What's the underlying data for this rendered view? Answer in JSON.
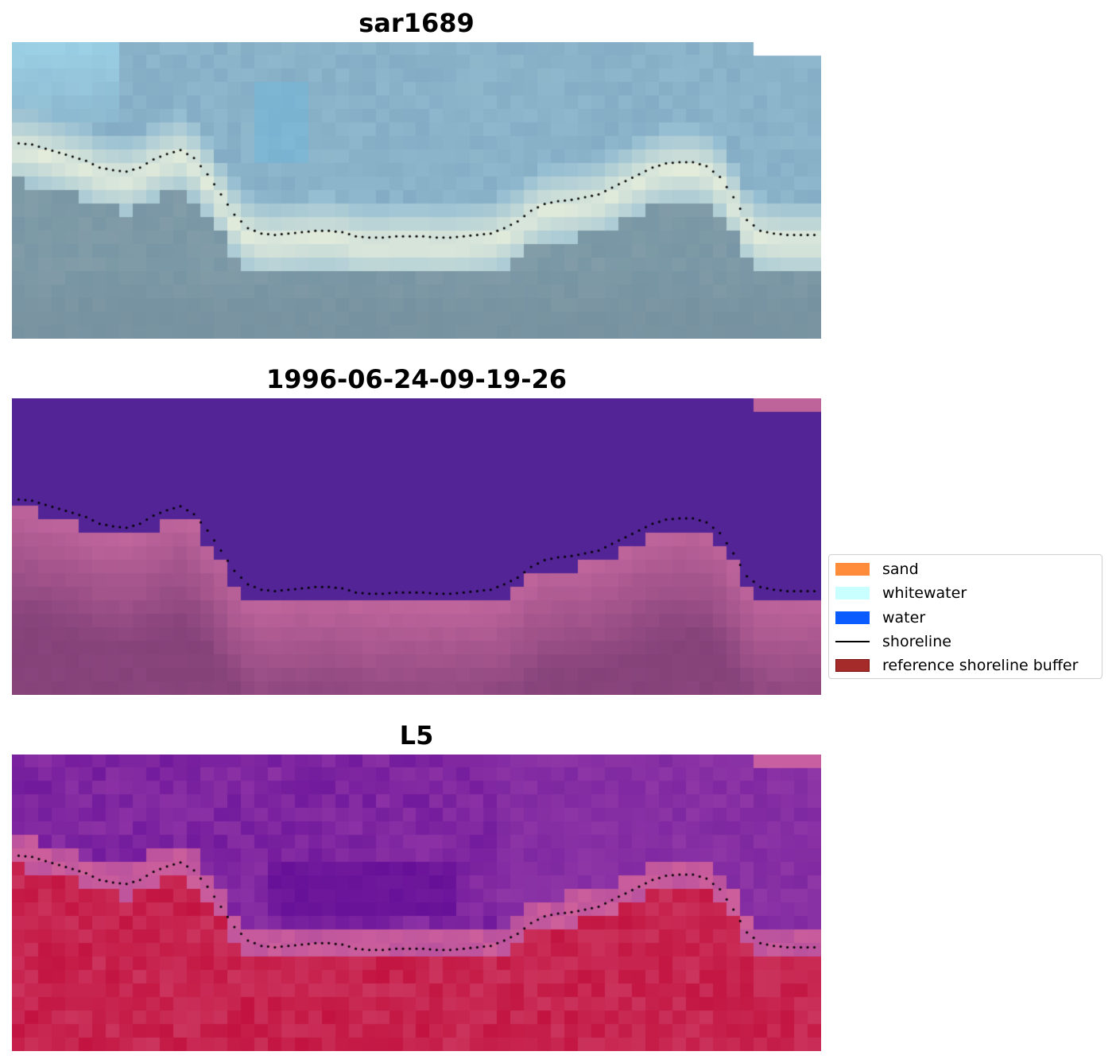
{
  "panels": [
    {
      "title": "sar1689"
    },
    {
      "title": "1996-06-24-09-19-26"
    },
    {
      "title": "L5"
    }
  ],
  "legend": {
    "items": [
      {
        "label": "sand",
        "color": "#ff8c3b",
        "kind": "patch"
      },
      {
        "label": "whitewater",
        "color": "#c9ffff",
        "kind": "patch"
      },
      {
        "label": "water",
        "color": "#0a5cff",
        "kind": "patch"
      },
      {
        "label": "shoreline",
        "color": "#000000",
        "kind": "line"
      },
      {
        "label": "reference shoreline buffer",
        "color": "#a52a2a",
        "kind": "patch"
      }
    ]
  },
  "chart_data": {
    "type": "heatmap",
    "shoreline_points": [
      [
        0,
        7.5
      ],
      [
        1,
        7.6
      ],
      [
        2,
        7.9
      ],
      [
        3,
        8.2
      ],
      [
        4,
        8.5
      ],
      [
        5,
        8.8
      ],
      [
        6,
        9.3
      ],
      [
        7,
        9.5
      ],
      [
        8,
        9.6
      ],
      [
        9,
        9.3
      ],
      [
        10,
        8.7
      ],
      [
        11,
        8.3
      ],
      [
        12,
        8.0
      ],
      [
        13,
        8.6
      ],
      [
        14,
        9.8
      ],
      [
        15,
        11.3
      ],
      [
        16,
        12.8
      ],
      [
        17,
        13.8
      ],
      [
        18,
        14.2
      ],
      [
        19,
        14.3
      ],
      [
        20,
        14.2
      ],
      [
        21,
        14.1
      ],
      [
        22,
        14.0
      ],
      [
        23,
        14.0
      ],
      [
        24,
        14.1
      ],
      [
        25,
        14.4
      ],
      [
        26,
        14.5
      ],
      [
        27,
        14.5
      ],
      [
        28,
        14.4
      ],
      [
        29,
        14.4
      ],
      [
        30,
        14.4
      ],
      [
        31,
        14.5
      ],
      [
        32,
        14.5
      ],
      [
        33,
        14.4
      ],
      [
        34,
        14.3
      ],
      [
        35,
        14.2
      ],
      [
        36,
        13.8
      ],
      [
        37,
        13.3
      ],
      [
        38,
        12.5
      ],
      [
        39,
        12.0
      ],
      [
        40,
        11.8
      ],
      [
        41,
        11.7
      ],
      [
        42,
        11.5
      ],
      [
        43,
        11.3
      ],
      [
        44,
        10.8
      ],
      [
        45,
        10.3
      ],
      [
        46,
        9.8
      ],
      [
        47,
        9.3
      ],
      [
        48,
        9.0
      ],
      [
        49,
        8.9
      ],
      [
        50,
        8.9
      ],
      [
        51,
        9.2
      ],
      [
        52,
        10.0
      ],
      [
        53,
        11.5
      ],
      [
        54,
        13.2
      ],
      [
        55,
        14.0
      ],
      [
        56,
        14.2
      ],
      [
        57,
        14.3
      ],
      [
        58,
        14.3
      ],
      [
        59,
        14.3
      ]
    ]
  }
}
